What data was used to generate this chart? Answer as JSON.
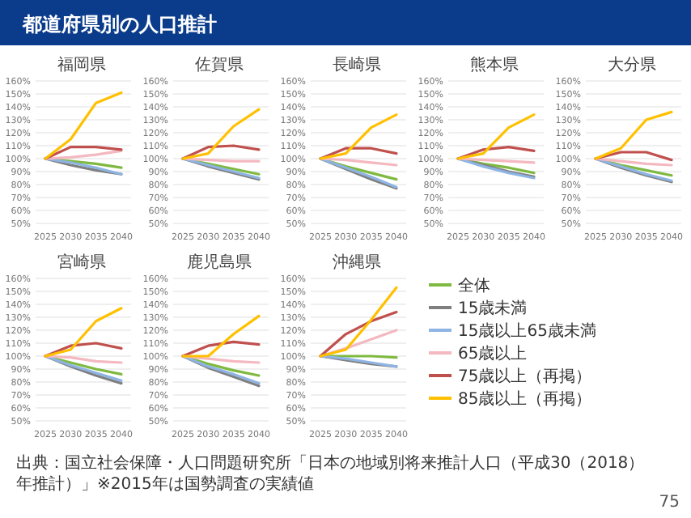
{
  "chart_data": [
    {
      "type": "line",
      "title": "福岡県",
      "categories": [
        "2025",
        "2030",
        "2035",
        "2040"
      ],
      "ylim": [
        50,
        160
      ],
      "yticks": [
        {
          "value": 50,
          "label": "50%"
        },
        {
          "value": 60,
          "label": "60%"
        },
        {
          "value": 70,
          "label": "70%"
        },
        {
          "value": 80,
          "label": "80%"
        },
        {
          "value": 90,
          "label": "90%"
        },
        {
          "value": 100,
          "label": "100%"
        },
        {
          "value": 110,
          "label": "110%"
        },
        {
          "value": 120,
          "label": "120%"
        },
        {
          "value": 130,
          "label": "130%"
        },
        {
          "value": 140,
          "label": "140%"
        },
        {
          "value": 150,
          "label": "150%"
        },
        {
          "value": 160,
          "label": "160%"
        }
      ],
      "grid": "y",
      "series": [
        {
          "color": "#7fb940",
          "values": [
            100,
            98,
            96,
            93
          ]
        },
        {
          "color": "#7f7f7f",
          "values": [
            100,
            95,
            91,
            88
          ]
        },
        {
          "color": "#8eb4e3",
          "values": [
            100,
            97,
            93,
            88
          ]
        },
        {
          "color": "#f4b8c0",
          "values": [
            100,
            101,
            103,
            106
          ]
        },
        {
          "color": "#c0504d",
          "values": [
            100,
            109,
            109,
            107
          ]
        },
        {
          "color": "#ffc000",
          "values": [
            100,
            115,
            143,
            151
          ]
        }
      ]
    },
    {
      "type": "line",
      "title": "佐賀県",
      "categories": [
        "2025",
        "2030",
        "2035",
        "2040"
      ],
      "ylim": [
        50,
        160
      ],
      "yticks": [
        {
          "value": 50,
          "label": "50%"
        },
        {
          "value": 60,
          "label": "60%"
        },
        {
          "value": 70,
          "label": "70%"
        },
        {
          "value": 80,
          "label": "80%"
        },
        {
          "value": 90,
          "label": "90%"
        },
        {
          "value": 100,
          "label": "100%"
        },
        {
          "value": 110,
          "label": "110%"
        },
        {
          "value": 120,
          "label": "120%"
        },
        {
          "value": 130,
          "label": "130%"
        },
        {
          "value": 140,
          "label": "140%"
        },
        {
          "value": 150,
          "label": "150%"
        },
        {
          "value": 160,
          "label": "160%"
        }
      ],
      "grid": "y",
      "series": [
        {
          "color": "#7fb940",
          "values": [
            100,
            96,
            92,
            88
          ]
        },
        {
          "color": "#7f7f7f",
          "values": [
            100,
            94,
            89,
            84
          ]
        },
        {
          "color": "#8eb4e3",
          "values": [
            100,
            95,
            90,
            85
          ]
        },
        {
          "color": "#f4b8c0",
          "values": [
            100,
            99,
            98,
            98
          ]
        },
        {
          "color": "#c0504d",
          "values": [
            100,
            109,
            110,
            107
          ]
        },
        {
          "color": "#ffc000",
          "values": [
            100,
            104,
            125,
            138
          ]
        }
      ]
    },
    {
      "type": "line",
      "title": "長崎県",
      "categories": [
        "2025",
        "2030",
        "2035",
        "2040"
      ],
      "ylim": [
        50,
        160
      ],
      "yticks": [
        {
          "value": 50,
          "label": "50%"
        },
        {
          "value": 60,
          "label": "60%"
        },
        {
          "value": 70,
          "label": "70%"
        },
        {
          "value": 80,
          "label": "80%"
        },
        {
          "value": 90,
          "label": "90%"
        },
        {
          "value": 100,
          "label": "100%"
        },
        {
          "value": 110,
          "label": "110%"
        },
        {
          "value": 120,
          "label": "120%"
        },
        {
          "value": 130,
          "label": "130%"
        },
        {
          "value": 140,
          "label": "140%"
        },
        {
          "value": 150,
          "label": "150%"
        },
        {
          "value": 160,
          "label": "160%"
        }
      ],
      "grid": "y",
      "series": [
        {
          "color": "#7fb940",
          "values": [
            100,
            94,
            89,
            84
          ]
        },
        {
          "color": "#7f7f7f",
          "values": [
            100,
            92,
            84,
            77
          ]
        },
        {
          "color": "#8eb4e3",
          "values": [
            100,
            93,
            86,
            78
          ]
        },
        {
          "color": "#f4b8c0",
          "values": [
            100,
            99,
            97,
            95
          ]
        },
        {
          "color": "#c0504d",
          "values": [
            100,
            108,
            108,
            104
          ]
        },
        {
          "color": "#ffc000",
          "values": [
            100,
            104,
            124,
            134
          ]
        }
      ]
    },
    {
      "type": "line",
      "title": "熊本県",
      "categories": [
        "2025",
        "2030",
        "2035",
        "2040"
      ],
      "ylim": [
        50,
        160
      ],
      "yticks": [
        {
          "value": 50,
          "label": "50%"
        },
        {
          "value": 60,
          "label": "60%"
        },
        {
          "value": 70,
          "label": "70%"
        },
        {
          "value": 80,
          "label": "80%"
        },
        {
          "value": 90,
          "label": "90%"
        },
        {
          "value": 100,
          "label": "100%"
        },
        {
          "value": 110,
          "label": "110%"
        },
        {
          "value": 120,
          "label": "120%"
        },
        {
          "value": 130,
          "label": "130%"
        },
        {
          "value": 140,
          "label": "140%"
        },
        {
          "value": 150,
          "label": "150%"
        },
        {
          "value": 160,
          "label": "160%"
        }
      ],
      "grid": "y",
      "series": [
        {
          "color": "#7fb940",
          "values": [
            100,
            96,
            93,
            89
          ]
        },
        {
          "color": "#7f7f7f",
          "values": [
            100,
            95,
            90,
            86
          ]
        },
        {
          "color": "#8eb4e3",
          "values": [
            100,
            94,
            89,
            85
          ]
        },
        {
          "color": "#f4b8c0",
          "values": [
            100,
            99,
            98,
            97
          ]
        },
        {
          "color": "#c0504d",
          "values": [
            100,
            107,
            109,
            106
          ]
        },
        {
          "color": "#ffc000",
          "values": [
            100,
            104,
            124,
            134
          ]
        }
      ]
    },
    {
      "type": "line",
      "title": "大分県",
      "categories": [
        "2025",
        "2030",
        "2035",
        "2040"
      ],
      "ylim": [
        50,
        160
      ],
      "yticks": [
        {
          "value": 50,
          "label": "50%"
        },
        {
          "value": 60,
          "label": "60%"
        },
        {
          "value": 70,
          "label": "70%"
        },
        {
          "value": 80,
          "label": "80%"
        },
        {
          "value": 90,
          "label": "90%"
        },
        {
          "value": 100,
          "label": "100%"
        },
        {
          "value": 110,
          "label": "110%"
        },
        {
          "value": 120,
          "label": "120%"
        },
        {
          "value": 130,
          "label": "130%"
        },
        {
          "value": 140,
          "label": "140%"
        },
        {
          "value": 150,
          "label": "150%"
        },
        {
          "value": 160,
          "label": "160%"
        }
      ],
      "grid": "y",
      "series": [
        {
          "color": "#7fb940",
          "values": [
            100,
            95,
            91,
            87
          ]
        },
        {
          "color": "#7f7f7f",
          "values": [
            100,
            93,
            87,
            82
          ]
        },
        {
          "color": "#8eb4e3",
          "values": [
            100,
            94,
            88,
            83
          ]
        },
        {
          "color": "#f4b8c0",
          "values": [
            100,
            98,
            96,
            95
          ]
        },
        {
          "color": "#c0504d",
          "values": [
            100,
            105,
            105,
            99
          ]
        },
        {
          "color": "#ffc000",
          "values": [
            100,
            108,
            130,
            136
          ]
        }
      ]
    },
    {
      "type": "line",
      "title": "宮崎県",
      "categories": [
        "2025",
        "2030",
        "2035",
        "2040"
      ],
      "ylim": [
        50,
        160
      ],
      "yticks": [
        {
          "value": 50,
          "label": "50%"
        },
        {
          "value": 60,
          "label": "60%"
        },
        {
          "value": 70,
          "label": "70%"
        },
        {
          "value": 80,
          "label": "80%"
        },
        {
          "value": 90,
          "label": "90%"
        },
        {
          "value": 100,
          "label": "100%"
        },
        {
          "value": 110,
          "label": "110%"
        },
        {
          "value": 120,
          "label": "120%"
        },
        {
          "value": 130,
          "label": "130%"
        },
        {
          "value": 140,
          "label": "140%"
        },
        {
          "value": 150,
          "label": "150%"
        },
        {
          "value": 160,
          "label": "160%"
        }
      ],
      "grid": "y",
      "series": [
        {
          "color": "#7fb940",
          "values": [
            100,
            95,
            90,
            86
          ]
        },
        {
          "color": "#7f7f7f",
          "values": [
            100,
            92,
            85,
            79
          ]
        },
        {
          "color": "#8eb4e3",
          "values": [
            100,
            93,
            87,
            81
          ]
        },
        {
          "color": "#f4b8c0",
          "values": [
            100,
            99,
            96,
            95
          ]
        },
        {
          "color": "#c0504d",
          "values": [
            100,
            108,
            110,
            106
          ]
        },
        {
          "color": "#ffc000",
          "values": [
            100,
            105,
            127,
            137
          ]
        }
      ]
    },
    {
      "type": "line",
      "title": "鹿児島県",
      "categories": [
        "2025",
        "2030",
        "2035",
        "2040"
      ],
      "ylim": [
        50,
        160
      ],
      "yticks": [
        {
          "value": 50,
          "label": "50%"
        },
        {
          "value": 60,
          "label": "60%"
        },
        {
          "value": 70,
          "label": "70%"
        },
        {
          "value": 80,
          "label": "80%"
        },
        {
          "value": 90,
          "label": "90%"
        },
        {
          "value": 100,
          "label": "100%"
        },
        {
          "value": 110,
          "label": "110%"
        },
        {
          "value": 120,
          "label": "120%"
        },
        {
          "value": 130,
          "label": "130%"
        },
        {
          "value": 140,
          "label": "140%"
        },
        {
          "value": 150,
          "label": "150%"
        },
        {
          "value": 160,
          "label": "160%"
        }
      ],
      "grid": "y",
      "series": [
        {
          "color": "#7fb940",
          "values": [
            100,
            94,
            89,
            85
          ]
        },
        {
          "color": "#7f7f7f",
          "values": [
            100,
            91,
            84,
            77
          ]
        },
        {
          "color": "#8eb4e3",
          "values": [
            100,
            92,
            86,
            79
          ]
        },
        {
          "color": "#f4b8c0",
          "values": [
            100,
            98,
            96,
            95
          ]
        },
        {
          "color": "#c0504d",
          "values": [
            100,
            108,
            111,
            109
          ]
        },
        {
          "color": "#ffc000",
          "values": [
            100,
            100,
            117,
            131
          ]
        }
      ]
    },
    {
      "type": "line",
      "title": "沖縄県",
      "categories": [
        "2025",
        "2030",
        "2035",
        "2040"
      ],
      "ylim": [
        50,
        160
      ],
      "yticks": [
        {
          "value": 50,
          "label": "50%"
        },
        {
          "value": 60,
          "label": "60%"
        },
        {
          "value": 70,
          "label": "70%"
        },
        {
          "value": 80,
          "label": "80%"
        },
        {
          "value": 90,
          "label": "90%"
        },
        {
          "value": 100,
          "label": "100%"
        },
        {
          "value": 110,
          "label": "110%"
        },
        {
          "value": 120,
          "label": "120%"
        },
        {
          "value": 130,
          "label": "130%"
        },
        {
          "value": 140,
          "label": "140%"
        },
        {
          "value": 150,
          "label": "150%"
        },
        {
          "value": 160,
          "label": "160%"
        }
      ],
      "grid": "y",
      "legend": "right",
      "series": [
        {
          "name": "全体",
          "color": "#7fb940",
          "values": [
            100,
            100,
            100,
            99
          ]
        },
        {
          "name": "15歳未満",
          "color": "#7f7f7f",
          "values": [
            100,
            97,
            94,
            92
          ]
        },
        {
          "name": "15歳以上65歳未満",
          "color": "#8eb4e3",
          "values": [
            100,
            98,
            95,
            92
          ]
        },
        {
          "name": "65歳以上",
          "color": "#f4b8c0",
          "values": [
            100,
            106,
            113,
            120
          ]
        },
        {
          "name": "75歳以上（再掲）",
          "color": "#c0504d",
          "values": [
            100,
            117,
            127,
            134
          ]
        },
        {
          "name": "85歳以上（再掲）",
          "color": "#ffc000",
          "values": [
            100,
            105,
            128,
            153
          ]
        }
      ]
    },
    {
      "type": "other",
      "title": "都道府県別の人口推計",
      "annotations": [
        "出典：国立社会保障・人口問題研究所「日本の地域別将来推計人口（平成30（2018）年推計）」※2015年は国勢調査の実績値",
        "75"
      ]
    }
  ]
}
